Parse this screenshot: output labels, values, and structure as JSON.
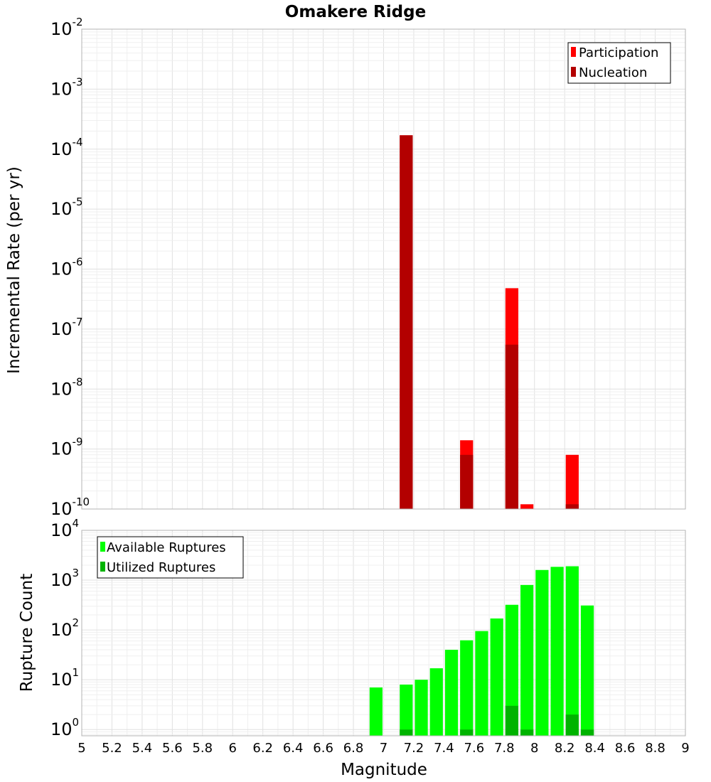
{
  "title": "Omakere Ridge",
  "chart_data": [
    {
      "type": "bar",
      "scale": "log",
      "title": "Omakere Ridge",
      "xlabel": "",
      "ylabel": "Incremental Rate (per yr)",
      "xlim": [
        5,
        9
      ],
      "ylim": [
        1e-10,
        0.01
      ],
      "y_exponents": [
        -10,
        -9,
        -8,
        -7,
        -6,
        -5,
        -4,
        -3,
        -2
      ],
      "grid": true,
      "legend_position": "top-right",
      "series": [
        {
          "name": "Participation",
          "color": "#ff0000",
          "x": [
            7.15,
            7.55,
            7.85,
            7.95,
            8.25
          ],
          "values": [
            0.00017,
            1.4e-09,
            4.8e-07,
            1.2e-10,
            8e-10
          ]
        },
        {
          "name": "Nucleation",
          "color": "#b30000",
          "x": [
            7.15,
            7.55,
            7.85,
            8.25
          ],
          "values": [
            0.00017,
            8e-10,
            5.5e-08,
            1.2e-10
          ]
        }
      ]
    },
    {
      "type": "bar",
      "scale": "log",
      "xlabel": "Magnitude",
      "ylabel": "Rupture Count",
      "xlim": [
        5,
        9
      ],
      "ylim": [
        0.75,
        10000
      ],
      "y_exponents": [
        0,
        1,
        2,
        3,
        4
      ],
      "x_ticks": [
        "5",
        "5.2",
        "5.4",
        "5.6",
        "5.8",
        "6",
        "6.2",
        "6.4",
        "6.6",
        "6.8",
        "7",
        "7.2",
        "7.4",
        "7.6",
        "7.8",
        "8",
        "8.2",
        "8.4",
        "8.6",
        "8.8",
        "9"
      ],
      "grid": true,
      "legend_position": "top-left",
      "series": [
        {
          "name": "Available Ruptures",
          "color": "#00ff00",
          "x": [
            6.95,
            7.15,
            7.25,
            7.35,
            7.45,
            7.55,
            7.65,
            7.75,
            7.85,
            7.95,
            8.05,
            8.15,
            8.25,
            8.35
          ],
          "values": [
            7,
            8,
            10,
            17,
            40,
            62,
            95,
            170,
            320,
            800,
            1600,
            1850,
            1900,
            310
          ]
        },
        {
          "name": "Utilized Ruptures",
          "color": "#00b300",
          "x": [
            7.15,
            7.55,
            7.85,
            7.95,
            8.25,
            8.35
          ],
          "values": [
            1,
            1,
            3,
            1,
            2,
            1
          ]
        }
      ]
    }
  ]
}
